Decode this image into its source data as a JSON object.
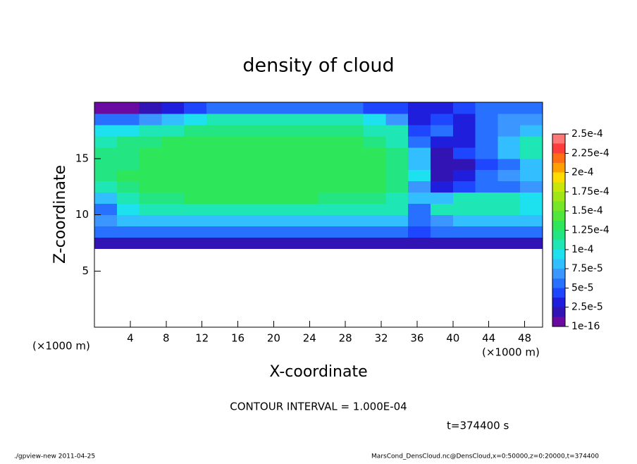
{
  "chart_data": {
    "type": "contour",
    "title": "density of cloud",
    "x_label": "X-coordinate",
    "y_label": "Z-coordinate",
    "x_unit_left": "(×1000 m)",
    "x_unit_right": "(×1000 m)",
    "contour_interval": "CONTOUR INTERVAL = 1.000E-04",
    "time_label": "t=374400 s",
    "footer_left": "./gpview-new   2011-04-25",
    "footer_right": "MarsCond_DensCloud.nc@DensCloud,x=0:50000,z=0:20000,t=374400",
    "xlim": [
      0,
      50
    ],
    "ylim": [
      0,
      20
    ],
    "xticks": [
      4,
      8,
      12,
      16,
      20,
      24,
      28,
      32,
      36,
      40,
      44,
      48
    ],
    "yticks": [
      5,
      10,
      15
    ],
    "x": [
      0,
      2.5,
      5,
      7.5,
      10,
      12.5,
      15,
      17.5,
      20,
      22.5,
      25,
      27.5,
      30,
      32.5,
      35,
      37.5,
      40,
      42.5,
      45,
      47.5,
      50
    ],
    "z": [
      7,
      8,
      9,
      10,
      11,
      12,
      13,
      14,
      15,
      16,
      17,
      18,
      19,
      20
    ],
    "values": [
      [
        1.5e-05,
        1.5e-05,
        1.5e-05,
        1.5e-05,
        1.5e-05,
        1.5e-05,
        1.5e-05,
        1.5e-05,
        1.5e-05,
        1.5e-05,
        1.5e-05,
        1.5e-05,
        1.5e-05,
        1.5e-05,
        1.5e-05,
        1.5e-05,
        1.5e-05,
        1.5e-05,
        1.5e-05,
        1.5e-05
      ],
      [
        5e-05,
        5e-05,
        5e-05,
        5e-05,
        5e-05,
        5e-05,
        5e-05,
        5e-05,
        5e-05,
        5e-05,
        5e-05,
        5e-05,
        5e-05,
        5e-05,
        4e-05,
        5e-05,
        5e-05,
        5e-05,
        5e-05,
        5e-05
      ],
      [
        7e-05,
        8e-05,
        8e-05,
        8e-05,
        8e-05,
        8e-05,
        8e-05,
        8e-05,
        8e-05,
        8e-05,
        8e-05,
        8e-05,
        8e-05,
        8e-05,
        5e-05,
        7e-05,
        8e-05,
        8e-05,
        8e-05,
        8e-05
      ],
      [
        6e-05,
        9e-05,
        0.00011,
        0.00011,
        0.00011,
        0.00011,
        0.00011,
        0.00011,
        0.00011,
        0.00011,
        0.00011,
        0.00011,
        0.00011,
        0.0001,
        6e-05,
        0.0001,
        0.00011,
        0.00011,
        0.0001,
        9.5e-05
      ],
      [
        8e-05,
        0.00011,
        0.00012,
        0.00012,
        0.000125,
        0.000125,
        0.000125,
        0.000125,
        0.000125,
        0.000125,
        0.00012,
        0.00012,
        0.00012,
        0.00011,
        8e-05,
        8e-05,
        0.000105,
        0.000105,
        0.0001,
        9e-05
      ],
      [
        0.00011,
        0.00012,
        0.000125,
        0.00013,
        0.00013,
        0.00013,
        0.00013,
        0.00013,
        0.00013,
        0.00013,
        0.00013,
        0.000125,
        0.000125,
        0.000115,
        7e-05,
        3e-05,
        4e-05,
        5e-05,
        6e-05,
        7e-05
      ],
      [
        0.00012,
        0.000125,
        0.00013,
        0.00013,
        0.000135,
        0.000135,
        0.000135,
        0.000135,
        0.000135,
        0.000135,
        0.00013,
        0.00013,
        0.000125,
        0.000115,
        9e-05,
        2e-05,
        3e-05,
        5e-05,
        7e-05,
        8e-05
      ],
      [
        0.000115,
        0.00012,
        0.000125,
        0.00013,
        0.000135,
        0.000135,
        0.000135,
        0.000135,
        0.000135,
        0.000135,
        0.00013,
        0.00013,
        0.000125,
        0.000115,
        8e-05,
        2e-05,
        2e-05,
        4e-05,
        6e-05,
        8e-05
      ],
      [
        0.000115,
        0.00012,
        0.000125,
        0.00013,
        0.000135,
        0.000135,
        0.000135,
        0.000135,
        0.000135,
        0.000135,
        0.00013,
        0.00013,
        0.000125,
        0.000115,
        8e-05,
        2e-05,
        4e-05,
        6e-05,
        8e-05,
        0.000105
      ],
      [
        0.00011,
        0.000115,
        0.00012,
        0.000125,
        0.00013,
        0.00013,
        0.00013,
        0.00013,
        0.00013,
        0.00013,
        0.00013,
        0.000125,
        0.00012,
        0.00011,
        6e-05,
        3e-05,
        3e-05,
        5e-05,
        8e-05,
        0.000105
      ],
      [
        9e-05,
        9.5e-05,
        0.0001,
        0.00011,
        0.000115,
        0.00012,
        0.00012,
        0.00012,
        0.00012,
        0.00012,
        0.00012,
        0.000115,
        0.00011,
        0.0001,
        4e-05,
        5e-05,
        3e-05,
        5e-05,
        7e-05,
        8e-05
      ],
      [
        5e-05,
        6e-05,
        7e-05,
        8e-05,
        9e-05,
        0.0001,
        0.000105,
        0.000105,
        0.000105,
        0.000105,
        0.0001,
        0.0001,
        9e-05,
        7e-05,
        3e-05,
        4e-05,
        3e-05,
        6e-05,
        7e-05,
        7e-05
      ],
      [
        1e-05,
        1e-05,
        2e-05,
        3e-05,
        4e-05,
        5e-05,
        5e-05,
        5e-05,
        5e-05,
        5e-05,
        5e-05,
        5e-05,
        4e-05,
        4e-05,
        3e-05,
        3e-05,
        4e-05,
        5e-05,
        6e-05,
        6e-05
      ]
    ],
    "colorbar_ticks": [
      {
        "value": 1e-16,
        "label": "1e-16"
      },
      {
        "value": 2.5e-05,
        "label": "2.5e-5"
      },
      {
        "value": 5e-05,
        "label": "5e-5"
      },
      {
        "value": 7.5e-05,
        "label": "7.5e-5"
      },
      {
        "value": 0.0001,
        "label": "1e-4"
      },
      {
        "value": 0.000125,
        "label": "1.25e-4"
      },
      {
        "value": 0.00015,
        "label": "1.5e-4"
      },
      {
        "value": 0.000175,
        "label": "1.75e-4"
      },
      {
        "value": 0.0002,
        "label": "2e-4"
      },
      {
        "value": 0.000225,
        "label": "2.25e-4"
      },
      {
        "value": 0.00025,
        "label": "2.5e-4"
      }
    ],
    "colors": [
      "#6a0aa0",
      "#3214b4",
      "#1e1edc",
      "#1e46ff",
      "#2870ff",
      "#3c96ff",
      "#32beff",
      "#1ee1f0",
      "#1ee6b4",
      "#23e682",
      "#2ee65a",
      "#50e63c",
      "#78e628",
      "#a0e614",
      "#c8e60a",
      "#ffdc00",
      "#ffa000",
      "#ff6e14",
      "#ff3c3c",
      "#ff7878"
    ],
    "over_color": "#ffb4b4"
  }
}
